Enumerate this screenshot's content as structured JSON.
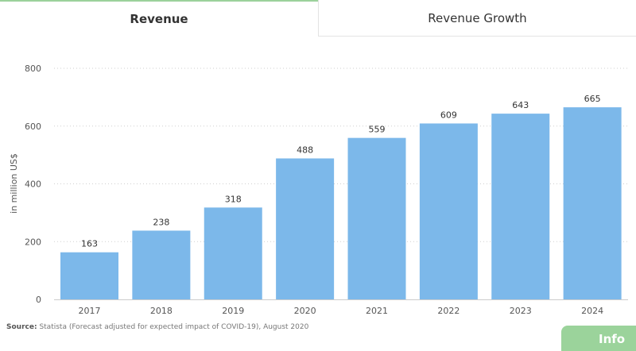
{
  "tabs": {
    "active_label": "Revenue",
    "inactive_label": "Revenue Growth"
  },
  "source": {
    "label": "Source:",
    "text": "Statista (Forecast adjusted for expected impact of COVID-19), August 2020"
  },
  "info_button": {
    "label": "Info"
  },
  "colors": {
    "bar": "#7cb8ea",
    "active_tab_accent": "#9bd19b",
    "info_button": "#9bd39b"
  },
  "chart_data": {
    "type": "bar",
    "categories": [
      "2017",
      "2018",
      "2019",
      "2020",
      "2021",
      "2022",
      "2023",
      "2024"
    ],
    "values": [
      163,
      238,
      318,
      488,
      559,
      609,
      643,
      665
    ],
    "data_labels": [
      "163",
      "238",
      "318",
      "488",
      "559",
      "609",
      "643",
      "665"
    ],
    "ylabel": "in million US$",
    "ylim": [
      0,
      800
    ],
    "yticks": [
      0,
      200,
      400,
      600,
      800
    ],
    "grid": true
  }
}
